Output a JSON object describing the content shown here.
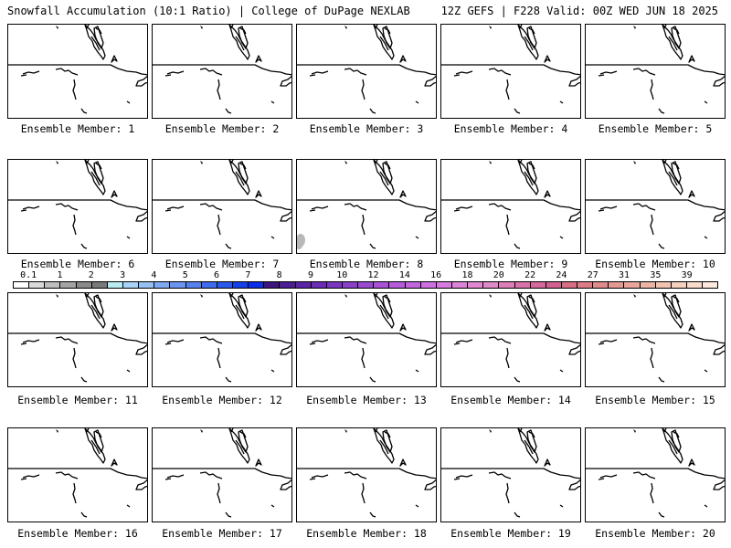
{
  "header": {
    "left": "Snowfall Accumulation (10:1 Ratio) | College of DuPage NEXLAB",
    "right": "12Z GEFS | F228 Valid: 00Z WED JUN 18 2025"
  },
  "members": [
    {
      "label": "Ensemble Member: 1",
      "snow": false
    },
    {
      "label": "Ensemble Member: 2",
      "snow": false
    },
    {
      "label": "Ensemble Member: 3",
      "snow": false
    },
    {
      "label": "Ensemble Member: 4",
      "snow": false
    },
    {
      "label": "Ensemble Member: 5",
      "snow": false
    },
    {
      "label": "Ensemble Member: 6",
      "snow": false
    },
    {
      "label": "Ensemble Member: 7",
      "snow": false
    },
    {
      "label": "Ensemble Member: 8",
      "snow": true
    },
    {
      "label": "Ensemble Member: 9",
      "snow": false
    },
    {
      "label": "Ensemble Member: 10",
      "snow": false
    },
    {
      "label": "Ensemble Member: 11",
      "snow": false
    },
    {
      "label": "Ensemble Member: 12",
      "snow": false
    },
    {
      "label": "Ensemble Member: 13",
      "snow": false
    },
    {
      "label": "Ensemble Member: 14",
      "snow": false
    },
    {
      "label": "Ensemble Member: 15",
      "snow": false
    },
    {
      "label": "Ensemble Member: 16",
      "snow": false
    },
    {
      "label": "Ensemble Member: 17",
      "snow": false
    },
    {
      "label": "Ensemble Member: 18",
      "snow": false
    },
    {
      "label": "Ensemble Member: 19",
      "snow": false
    },
    {
      "label": "Ensemble Member: 20",
      "snow": false
    }
  ],
  "colorbar": {
    "labels": [
      "0.1",
      "1",
      "2",
      "3",
      "4",
      "5",
      "6",
      "7",
      "8",
      "9",
      "10",
      "12",
      "14",
      "16",
      "18",
      "20",
      "22",
      "24",
      "27",
      "31",
      "35",
      "39"
    ],
    "colors": [
      "#ffffff",
      "#d9d9d9",
      "#bdbdbd",
      "#a3a3a3",
      "#8a8a8a",
      "#7a7a7a",
      "#b8ecf0",
      "#a8d3f5",
      "#95c0f4",
      "#7fa9f2",
      "#6a95f0",
      "#5580ee",
      "#3f6cec",
      "#2a58ea",
      "#1540e8",
      "#0a2ee6",
      "#3d1580",
      "#4a1d94",
      "#5a24a6",
      "#6a2db5",
      "#7a36c0",
      "#8a40c8",
      "#9a4ad0",
      "#a853d6",
      "#b55cdc",
      "#c266e0",
      "#cf70e2",
      "#d87ae0",
      "#df82da",
      "#e288d0",
      "#e08ac6",
      "#de7eb8",
      "#da72aa",
      "#d6689e",
      "#d26090",
      "#d66e84",
      "#dc7c86",
      "#e08a8c",
      "#e49892",
      "#e8a69a",
      "#ecb4a4",
      "#f0c2b0",
      "#f4d0be",
      "#f8dccc",
      "#fce8dc"
    ]
  }
}
